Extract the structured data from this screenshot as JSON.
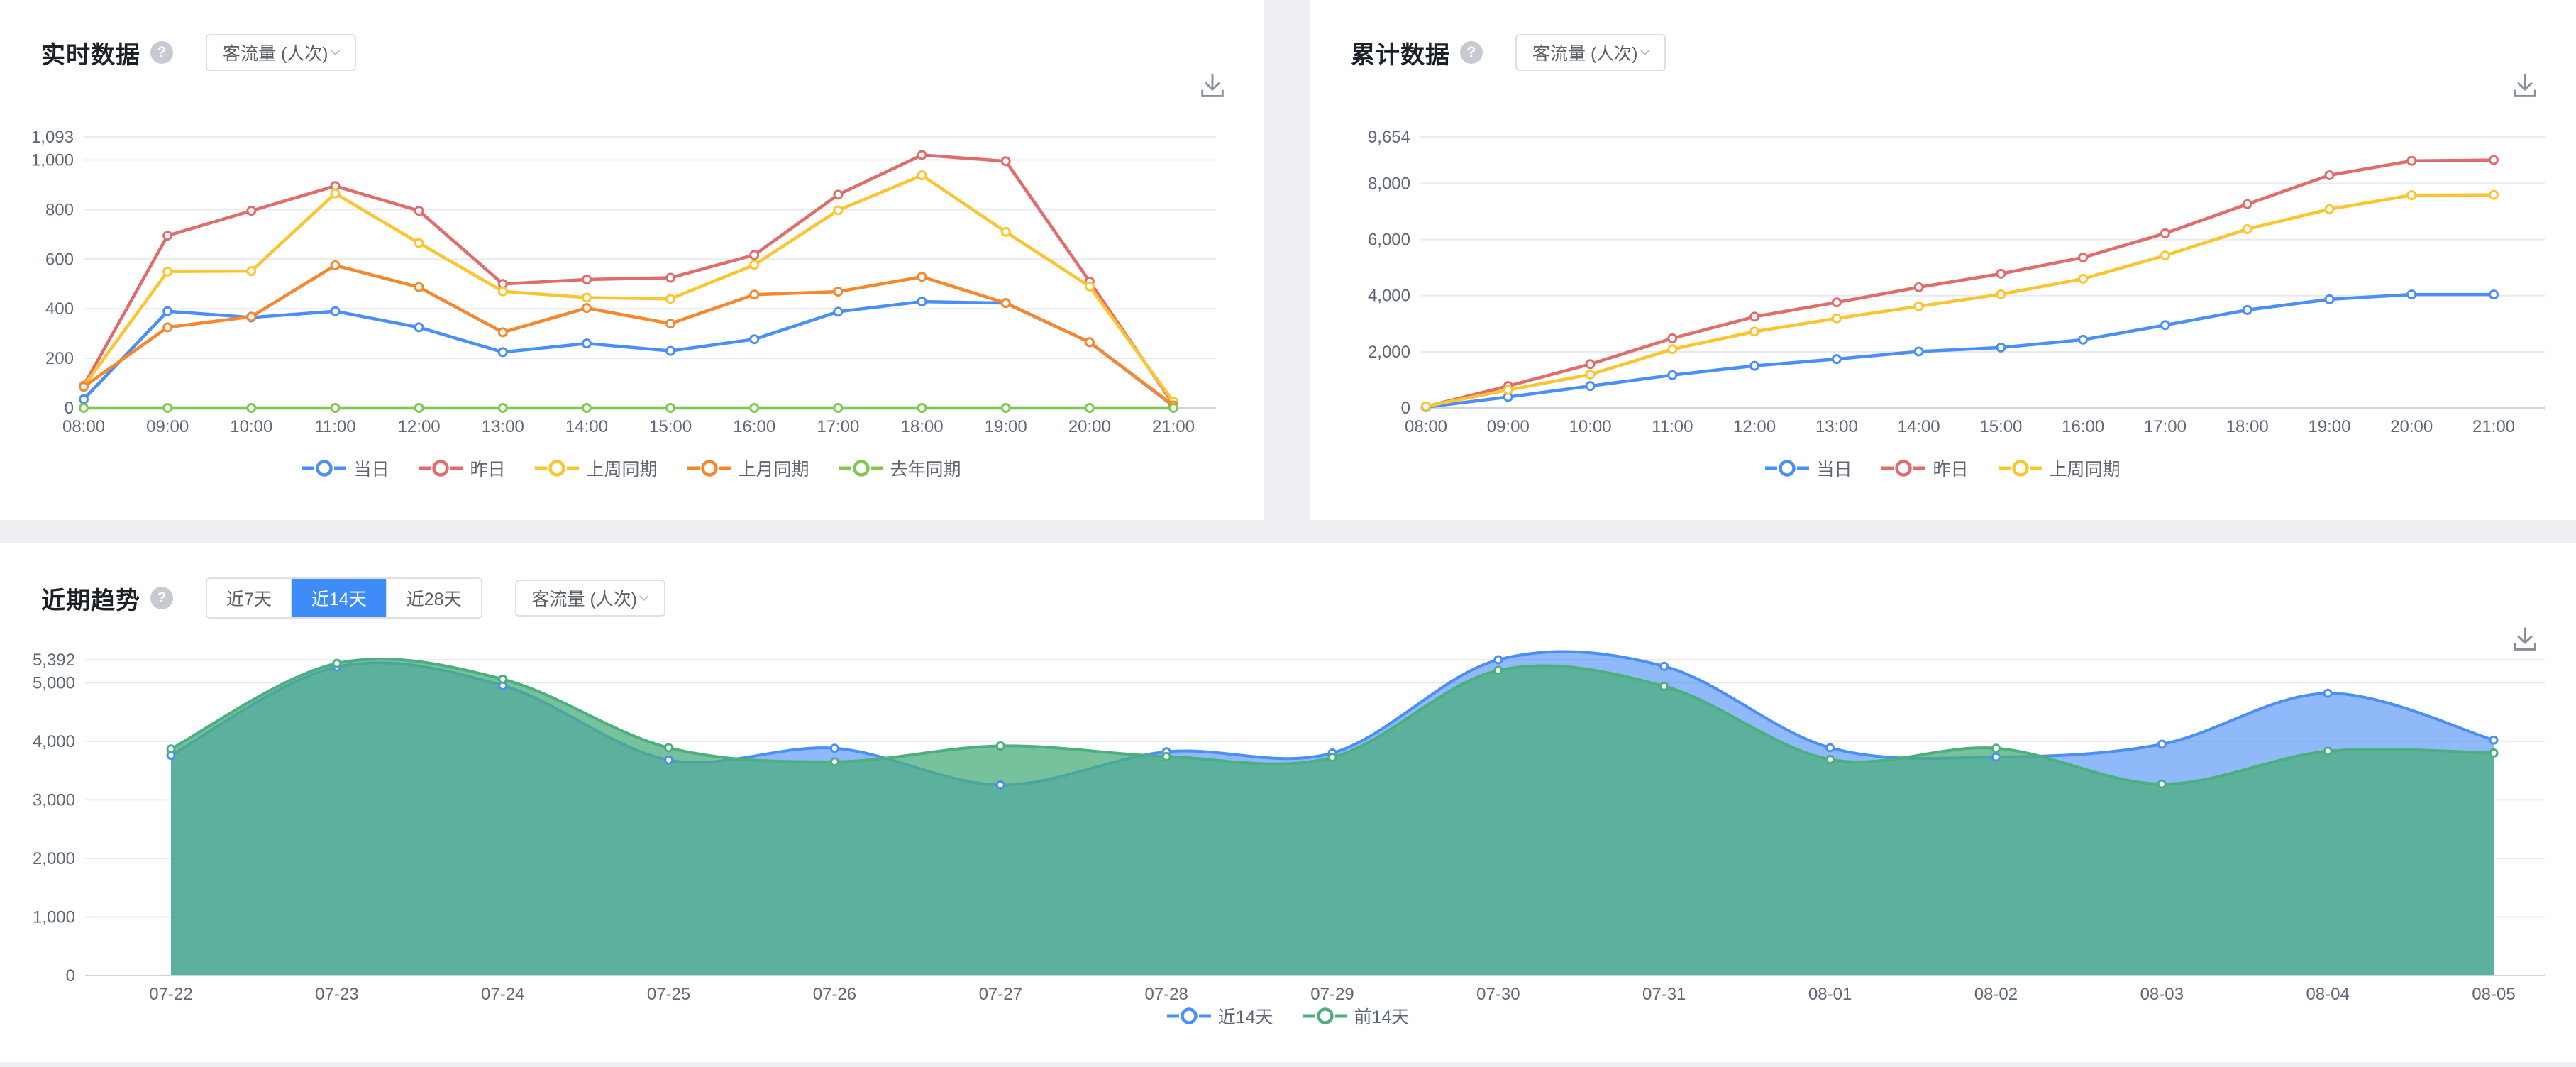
{
  "icons": {
    "help": "?"
  },
  "colors": {
    "background": "#edeff2",
    "panel": "#ffffff",
    "grid": "#e7eaf0",
    "axis": "#cfd4dc",
    "tick_text": "#5f6877",
    "active_button": "#3d8cf8",
    "blue": "#4a8ff5",
    "red": "#e06c6c",
    "yellow": "#fbc531",
    "orange": "#f5872e",
    "green": "#7ec850",
    "trend_green": "#4caf7e"
  },
  "panels": {
    "realtime": {
      "title": "实时数据",
      "metric_select": "客流量 (人次)"
    },
    "cumulative": {
      "title": "累计数据",
      "metric_select": "客流量 (人次)"
    },
    "trend": {
      "title": "近期趋势",
      "metric_select": "客流量 (人次)",
      "ranges": [
        {
          "label": "近7天",
          "active": false
        },
        {
          "label": "近14天",
          "active": true
        },
        {
          "label": "近28天",
          "active": false
        }
      ]
    }
  },
  "chart_data": [
    {
      "id": "realtime",
      "type": "line",
      "smooth": false,
      "title": "实时数据",
      "grid": true,
      "legend_position": "bottom",
      "categories": [
        "08:00",
        "09:00",
        "10:00",
        "11:00",
        "12:00",
        "13:00",
        "14:00",
        "15:00",
        "16:00",
        "17:00",
        "18:00",
        "19:00",
        "20:00",
        "21:00"
      ],
      "yticks": [
        0,
        200,
        400,
        600,
        800,
        1000,
        1093
      ],
      "ytick_labels": [
        "0",
        "200",
        "400",
        "600",
        "800",
        "1,000",
        "1,093"
      ],
      "ylim": [
        0,
        1093
      ],
      "series": [
        {
          "name": "当日",
          "color": "#4a8ff5",
          "values": [
            35,
            390,
            365,
            390,
            325,
            225,
            260,
            230,
            277,
            388,
            429,
            423,
            265,
            8
          ]
        },
        {
          "name": "昨日",
          "color": "#e06c6c",
          "values": [
            90,
            695,
            795,
            895,
            795,
            500,
            518,
            525,
            617,
            860,
            1020,
            995,
            510,
            15
          ]
        },
        {
          "name": "上周同期",
          "color": "#fbc531",
          "values": [
            88,
            550,
            552,
            865,
            665,
            470,
            445,
            440,
            577,
            797,
            938,
            710,
            490,
            25
          ]
        },
        {
          "name": "上月同期",
          "color": "#f5872e",
          "values": [
            85,
            325,
            368,
            575,
            487,
            305,
            403,
            340,
            457,
            469,
            529,
            423,
            265,
            10
          ]
        },
        {
          "name": "去年同期",
          "color": "#7ec850",
          "values": [
            0,
            0,
            0,
            0,
            0,
            0,
            0,
            0,
            0,
            0,
            0,
            0,
            0,
            0
          ]
        }
      ]
    },
    {
      "id": "cumulative",
      "type": "line",
      "smooth": false,
      "title": "累计数据",
      "grid": true,
      "legend_position": "bottom",
      "categories": [
        "08:00",
        "09:00",
        "10:00",
        "11:00",
        "12:00",
        "13:00",
        "14:00",
        "15:00",
        "16:00",
        "17:00",
        "18:00",
        "19:00",
        "20:00",
        "21:00"
      ],
      "yticks": [
        0,
        2000,
        4000,
        6000,
        8000,
        9654
      ],
      "ytick_labels": [
        "0",
        "2,000",
        "4,000",
        "6,000",
        "8,000",
        "9,654"
      ],
      "ylim": [
        0,
        9654
      ],
      "series": [
        {
          "name": "当日",
          "color": "#4a8ff5",
          "values": [
            30,
            390,
            780,
            1170,
            1500,
            1740,
            2010,
            2150,
            2430,
            2950,
            3490,
            3870,
            4040,
            4040
          ]
        },
        {
          "name": "昨日",
          "color": "#e06c6c",
          "values": [
            50,
            780,
            1560,
            2480,
            3250,
            3760,
            4300,
            4780,
            5360,
            6220,
            7260,
            8290,
            8800,
            8830
          ]
        },
        {
          "name": "上周同期",
          "color": "#fbc531",
          "values": [
            60,
            640,
            1190,
            2090,
            2720,
            3190,
            3620,
            4050,
            4600,
            5430,
            6370,
            7080,
            7580,
            7590
          ]
        }
      ]
    },
    {
      "id": "trend",
      "type": "area",
      "smooth": true,
      "title": "近期趋势",
      "grid": true,
      "legend_position": "bottom",
      "categories": [
        "07-22",
        "07-23",
        "07-24",
        "07-25",
        "07-26",
        "07-27",
        "07-28",
        "07-29",
        "07-30",
        "07-31",
        "08-01",
        "08-02",
        "08-03",
        "08-04",
        "08-05"
      ],
      "yticks": [
        0,
        1000,
        2000,
        3000,
        4000,
        5000,
        5392
      ],
      "ytick_labels": [
        "0",
        "1,000",
        "2,000",
        "3,000",
        "4,000",
        "5,000",
        "5,392"
      ],
      "ylim": [
        0,
        5392
      ],
      "series": [
        {
          "name": "近14天",
          "color": "#4a8ff5",
          "fill": "rgba(74,142,245,0.62)",
          "values": [
            3760,
            5270,
            4950,
            3680,
            3880,
            3255,
            3820,
            3800,
            5392,
            5280,
            3890,
            3730,
            3950,
            4820,
            4020
          ]
        },
        {
          "name": "前14天",
          "color": "#4caf7e",
          "fill": "rgba(76,175,126,0.76)",
          "values": [
            3870,
            5330,
            5060,
            3890,
            3650,
            3920,
            3740,
            3725,
            5210,
            4940,
            3690,
            3880,
            3270,
            3830,
            3800
          ]
        }
      ]
    }
  ]
}
